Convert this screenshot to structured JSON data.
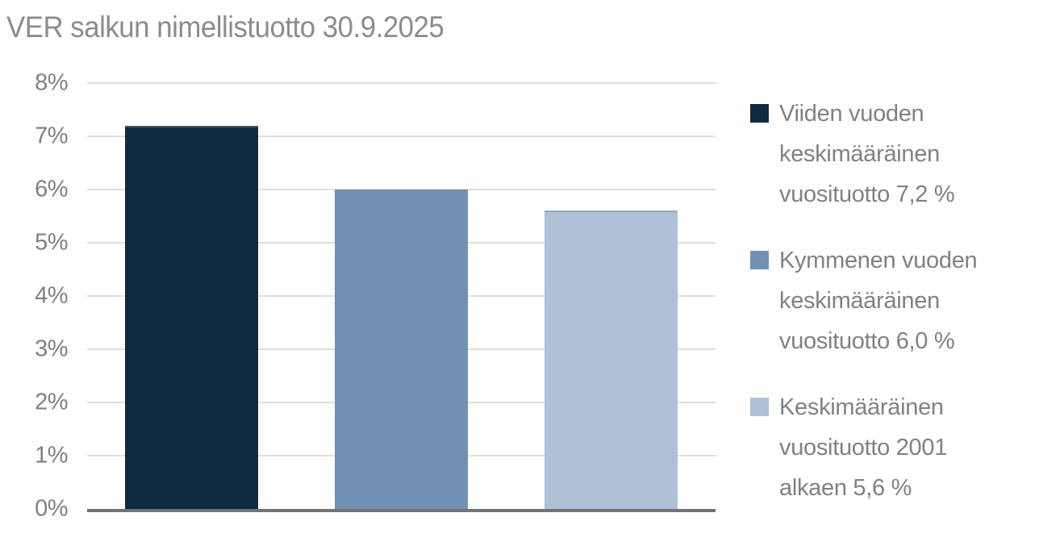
{
  "page": {
    "background": "#ffffff"
  },
  "chart_data": {
    "type": "bar",
    "title": "VER salkun nimellistuotto 30.9.2025",
    "categories": [
      "Viiden vuoden keskimääräinen vuosituotto",
      "Kymmenen vuoden keskimääräinen vuosituotto",
      "Keskimääräinen vuosituotto 2001 alkaen"
    ],
    "values": [
      7.2,
      6.0,
      5.6
    ],
    "value_labels": [
      "7,2 %",
      "6,0 %",
      "5,6 %"
    ],
    "series_colors": [
      "#0d2a3f",
      "#7091b4",
      "#aec1d7"
    ],
    "xlabel": "",
    "ylabel": "",
    "ylim": [
      0,
      8
    ],
    "ytick_step": 1,
    "yticks": [
      "0%",
      "1%",
      "2%",
      "3%",
      "4%",
      "5%",
      "6%",
      "7%",
      "8%"
    ],
    "grid": true,
    "legend_position": "right",
    "legend": [
      {
        "color": "#0d2a3f",
        "label": "Viiden vuoden keskimääräinen vuosituotto 7,2 %",
        "lines": [
          "Viiden vuoden",
          "keskimääräinen",
          "vuosituotto 7,2 %"
        ]
      },
      {
        "color": "#7091b4",
        "label": "Kymmenen vuoden keskimääräinen vuosituotto 6,0 %",
        "lines": [
          "Kymmenen vuoden",
          "keskimääräinen",
          "vuosituotto 6,0 %"
        ]
      },
      {
        "color": "#aec1d7",
        "label": "Keskimääräinen vuosituotto 2001 alkaen 5,6 %",
        "lines": [
          "Keskimääräinen",
          "vuosituotto 2001",
          "alkaen 5,6 %"
        ]
      }
    ]
  },
  "colors": {
    "title_text": "#8b8c8e",
    "axis_text": "#7f8083",
    "legend_text": "#7f8183",
    "gridline": "#dedede",
    "axis_line": "#747474",
    "bar_navy": "#0d2a3f",
    "bar_mid_blue": "#7091b4",
    "bar_light_blue": "#aec1d7"
  }
}
